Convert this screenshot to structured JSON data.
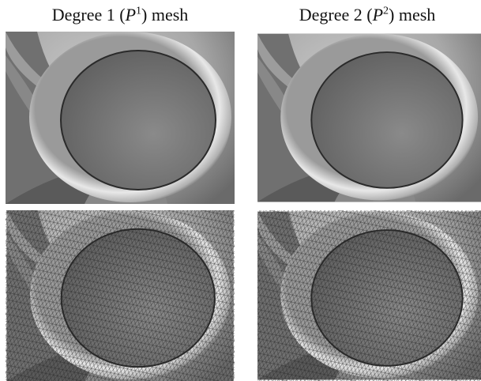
{
  "columns": [
    {
      "prefix": "Degree 1 (",
      "var": "P",
      "sup": "1",
      "suffix": ") mesh"
    },
    {
      "prefix": "Degree 2 (",
      "var": "P",
      "sup": "2",
      "suffix": ") mesh"
    }
  ]
}
